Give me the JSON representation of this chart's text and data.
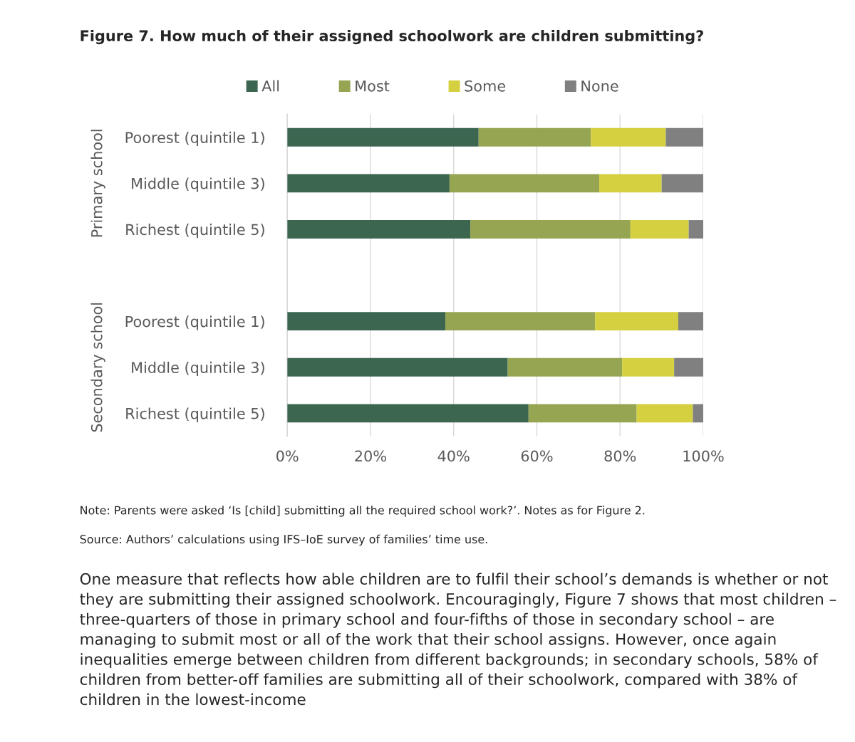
{
  "chart_data": {
    "type": "bar",
    "orientation": "horizontal",
    "stacked": true,
    "title": "Figure 7. How much of their assigned schoolwork are children submitting?",
    "categories": [
      "Poorest (quintile 1)",
      "Middle (quintile 3)",
      "Richest (quintile 5)",
      null,
      "Poorest (quintile 1)",
      "Middle (quintile 3)",
      "Richest (quintile 5)"
    ],
    "series": [
      {
        "name": "All",
        "color": "#3d6651",
        "values": [
          46,
          39,
          44,
          null,
          38,
          53,
          58
        ]
      },
      {
        "name": "Most",
        "color": "#96a552",
        "values": [
          27,
          36,
          38.5,
          null,
          36,
          27.5,
          26
        ]
      },
      {
        "name": "Some",
        "color": "#d4d040",
        "values": [
          18,
          15,
          14,
          null,
          20,
          12.5,
          13.5
        ]
      },
      {
        "name": "None",
        "color": "#808080",
        "values": [
          9,
          10,
          3.5,
          null,
          6,
          7,
          2.5
        ]
      }
    ],
    "xlim": [
      0,
      100
    ],
    "xticks": [
      {
        "value": 0,
        "label": "0%"
      },
      {
        "value": 20,
        "label": "20%"
      },
      {
        "value": 40,
        "label": "40%"
      },
      {
        "value": 60,
        "label": "60%"
      },
      {
        "value": 80,
        "label": "80%"
      },
      {
        "value": 100,
        "label": "100%"
      }
    ],
    "grid": "x",
    "legend": "top",
    "annotations": [
      "Primary school",
      "Secondary school",
      "Note: Parents were asked ‘Is [child] submitting all the required school work?’. Notes as for Figure 2.",
      "Source: Authors’ calculations using IFS–IoE survey of families’ time use.",
      "One measure that reflects how able children are to fulfil their school’s demands is whether or not they are submitting their assigned schoolwork. Encouragingly, Figure 7 shows that most children – three-quarters of those in primary school and four-fifths of those in secondary school – are managing to submit most or all of the work that their school assigns. However, once again inequalities emerge between children from different backgrounds; in secondary schools, 58% of children from better-off families are submitting all of their schoolwork, compared with 38% of children in the lowest-income"
    ]
  }
}
